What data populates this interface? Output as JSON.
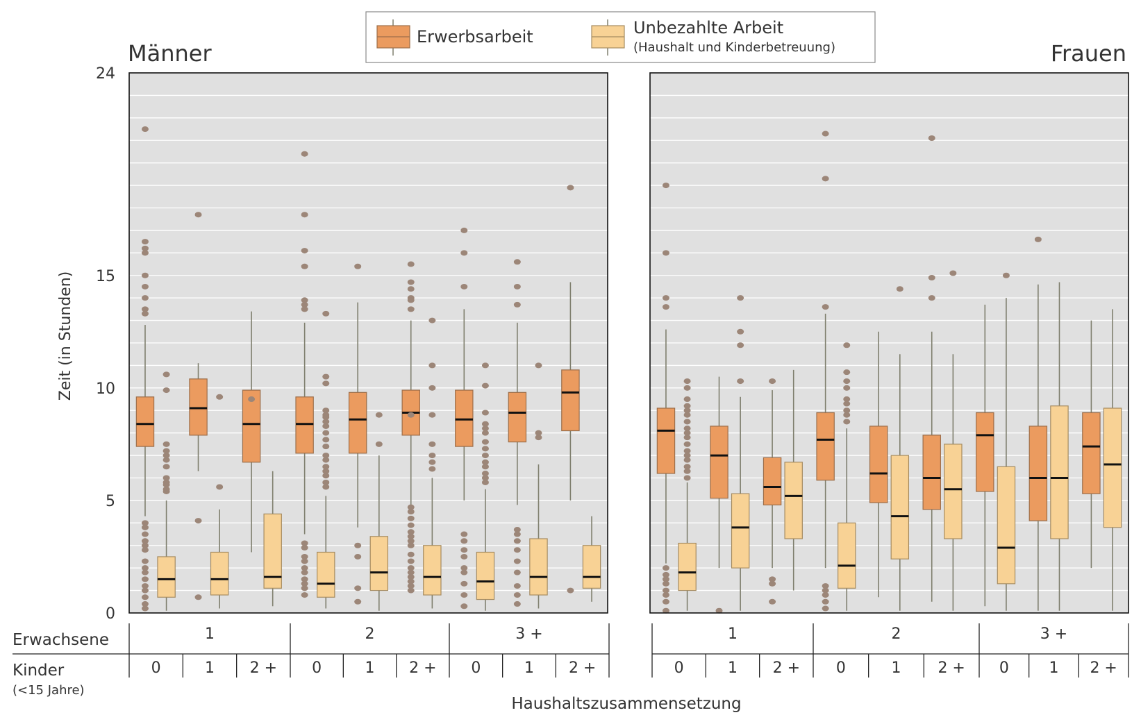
{
  "legend": {
    "erwerb": "Erwerbsarbeit",
    "unbezahlt": "Unbezahlte Arbeit",
    "unbezahlt_sub": "(Haushalt und Kinderbetreuung)"
  },
  "axis": {
    "ylabel": "Zeit (in Stunden)",
    "xlabel": "Haushaltszusammensetzung",
    "row1_label": "Erwachsene",
    "row2_label": "Kinder",
    "row2_sub": "(<15 Jahre)",
    "y_ticks": [
      "0",
      "5",
      "10",
      "15",
      "24"
    ]
  },
  "chart_data": {
    "type": "boxplot",
    "ylim": [
      0,
      24
    ],
    "ylabel": "Zeit (in Stunden)",
    "xlabel": "Haushaltszusammensetzung",
    "grid": "horizontal",
    "legend_position": "top-center",
    "colors": {
      "erwerb": "#EB9B5F",
      "unbezahlt": "#F8D295",
      "outlier": "#9C8678",
      "median": "#111111",
      "whisker": "#7F7F6E",
      "panel_bg": "#E0E0E0"
    },
    "groups": [
      {
        "adults": "1",
        "kids": [
          "0",
          "1",
          "2 +"
        ]
      },
      {
        "adults": "2",
        "kids": [
          "0",
          "1",
          "2 +"
        ]
      },
      {
        "adults": "3 +",
        "kids": [
          "0",
          "1",
          "2 +"
        ]
      }
    ],
    "panels": [
      {
        "title": "Männer",
        "series": [
          {
            "name": "Erwerbsarbeit",
            "boxes": [
              {
                "lw": 4.3,
                "q1": 7.4,
                "med": 8.4,
                "q3": 9.6,
                "uw": 12.8,
                "out": [
                  21.5,
                  16.5,
                  16.2,
                  16.0,
                  15.0,
                  14.5,
                  14.0,
                  13.5,
                  13.3,
                  4.0,
                  3.8,
                  3.5,
                  3.2,
                  3.0,
                  2.8,
                  2.3,
                  2.0,
                  1.8,
                  1.5,
                  1.2,
                  1.0,
                  0.7,
                  0.4,
                  0.2
                ]
              },
              {
                "lw": 6.3,
                "q1": 7.9,
                "med": 9.1,
                "q3": 10.4,
                "uw": 11.1,
                "out": [
                  17.7,
                  4.1,
                  0.7
                ]
              },
              {
                "lw": 2.7,
                "q1": 6.7,
                "med": 8.4,
                "q3": 9.9,
                "uw": 13.4,
                "out": [
                  9.5
                ]
              },
              {
                "lw": 3.5,
                "q1": 7.1,
                "med": 8.4,
                "q3": 9.6,
                "uw": 12.9,
                "out": [
                  20.4,
                  17.7,
                  16.1,
                  15.4,
                  13.9,
                  13.7,
                  13.5,
                  3.1,
                  2.9,
                  2.5,
                  2.3,
                  2.0,
                  1.8,
                  1.5,
                  1.3,
                  1.1,
                  0.8
                ]
              },
              {
                "lw": 3.8,
                "q1": 7.1,
                "med": 8.6,
                "q3": 9.8,
                "uw": 13.8,
                "out": [
                  15.4,
                  3.0,
                  2.5,
                  1.1,
                  0.5
                ]
              },
              {
                "lw": 4.8,
                "q1": 7.9,
                "med": 8.9,
                "q3": 9.9,
                "uw": 13.0,
                "out": [
                  15.5,
                  14.7,
                  14.4,
                  14.0,
                  13.9,
                  13.5,
                  8.8,
                  4.7,
                  4.5,
                  4.2,
                  3.9,
                  3.6,
                  3.4,
                  3.2,
                  3.0,
                  2.6,
                  2.3,
                  2.0,
                  1.8,
                  1.6,
                  1.4,
                  1.2,
                  1.0
                ]
              },
              {
                "lw": 5.0,
                "q1": 7.4,
                "med": 8.6,
                "q3": 9.9,
                "uw": 13.5,
                "out": [
                  17.0,
                  16.0,
                  14.5,
                  3.5,
                  3.2,
                  2.8,
                  2.5,
                  2.0,
                  1.8,
                  1.3,
                  0.8,
                  0.3
                ]
              },
              {
                "lw": 4.8,
                "q1": 7.6,
                "med": 8.9,
                "q3": 9.8,
                "uw": 12.9,
                "out": [
                  15.6,
                  14.5,
                  13.7,
                  3.7,
                  3.5,
                  3.2,
                  2.8,
                  2.3,
                  1.8,
                  1.2,
                  0.8,
                  0.4
                ]
              },
              {
                "lw": 5.0,
                "q1": 8.1,
                "med": 9.8,
                "q3": 10.8,
                "uw": 14.7,
                "out": [
                  18.9,
                  1.0
                ]
              }
            ]
          },
          {
            "name": "Unbezahlte Arbeit",
            "boxes": [
              {
                "lw": 0.1,
                "q1": 0.7,
                "med": 1.5,
                "q3": 2.5,
                "uw": 5.0,
                "out": [
                  10.6,
                  9.9,
                  7.5,
                  7.2,
                  7.0,
                  6.8,
                  6.5,
                  6.0,
                  5.8,
                  5.7,
                  5.5,
                  5.4
                ]
              },
              {
                "lw": 0.2,
                "q1": 0.8,
                "med": 1.5,
                "q3": 2.7,
                "uw": 4.6,
                "out": [
                  9.6,
                  5.6
                ]
              },
              {
                "lw": 0.3,
                "q1": 1.1,
                "med": 1.6,
                "q3": 4.4,
                "uw": 6.3,
                "out": []
              },
              {
                "lw": 0.2,
                "q1": 0.7,
                "med": 1.3,
                "q3": 2.7,
                "uw": 5.2,
                "out": [
                  13.3,
                  10.5,
                  10.2,
                  9.0,
                  8.8,
                  8.7,
                  8.5,
                  8.3,
                  8.0,
                  7.7,
                  7.4,
                  7.0,
                  6.8,
                  6.5,
                  6.3,
                  6.1,
                  5.8,
                  5.6
                ]
              },
              {
                "lw": 0.1,
                "q1": 1.0,
                "med": 1.8,
                "q3": 3.4,
                "uw": 7.0,
                "out": [
                  8.8,
                  7.5
                ]
              },
              {
                "lw": 0.2,
                "q1": 0.8,
                "med": 1.6,
                "q3": 3.0,
                "uw": 6.0,
                "out": [
                  13.0,
                  11.0,
                  10.0,
                  8.8,
                  7.5,
                  7.0,
                  6.7,
                  6.4
                ]
              },
              {
                "lw": 0.1,
                "q1": 0.6,
                "med": 1.4,
                "q3": 2.7,
                "uw": 5.5,
                "out": [
                  11.0,
                  10.1,
                  8.9,
                  8.4,
                  8.2,
                  8.0,
                  7.6,
                  7.3,
                  7.0,
                  6.7,
                  6.5,
                  6.2,
                  6.0,
                  5.8
                ]
              },
              {
                "lw": 0.2,
                "q1": 0.8,
                "med": 1.6,
                "q3": 3.3,
                "uw": 6.6,
                "out": [
                  11.0,
                  8.0,
                  7.8
                ]
              },
              {
                "lw": 0.5,
                "q1": 1.1,
                "med": 1.6,
                "q3": 3.0,
                "uw": 4.3,
                "out": []
              }
            ]
          }
        ]
      },
      {
        "title": "Frauen",
        "series": [
          {
            "name": "Erwerbsarbeit",
            "boxes": [
              {
                "lw": 2.2,
                "q1": 6.2,
                "med": 8.1,
                "q3": 9.1,
                "uw": 12.6,
                "out": [
                  19.0,
                  16.0,
                  14.0,
                  13.6,
                  2.0,
                  1.7,
                  1.5,
                  1.3,
                  1.0,
                  0.8,
                  0.5,
                  0.1
                ]
              },
              {
                "lw": 2.0,
                "q1": 5.1,
                "med": 7.0,
                "q3": 8.3,
                "uw": 10.5,
                "out": [
                  0.1
                ]
              },
              {
                "lw": 2.0,
                "q1": 4.8,
                "med": 5.6,
                "q3": 6.9,
                "uw": 9.9,
                "out": [
                  10.3,
                  1.5,
                  1.3,
                  0.5
                ]
              },
              {
                "lw": 2.0,
                "q1": 5.9,
                "med": 7.7,
                "q3": 8.9,
                "uw": 13.3,
                "out": [
                  21.3,
                  19.3,
                  13.6,
                  1.2,
                  1.0,
                  0.8,
                  0.5,
                  0.2
                ]
              },
              {
                "lw": 0.7,
                "q1": 4.9,
                "med": 6.2,
                "q3": 8.3,
                "uw": 12.5,
                "out": []
              },
              {
                "lw": 0.5,
                "q1": 4.6,
                "med": 6.0,
                "q3": 7.9,
                "uw": 12.5,
                "out": [
                  21.1,
                  14.9,
                  14.0
                ]
              },
              {
                "lw": 0.3,
                "q1": 5.4,
                "med": 7.9,
                "q3": 8.9,
                "uw": 13.7,
                "out": []
              },
              {
                "lw": 0.1,
                "q1": 4.1,
                "med": 6.0,
                "q3": 8.3,
                "uw": 14.6,
                "out": [
                  16.6
                ]
              },
              {
                "lw": 2.0,
                "q1": 5.3,
                "med": 7.4,
                "q3": 8.9,
                "uw": 13.0,
                "out": []
              }
            ]
          },
          {
            "name": "Unbezahlte Arbeit",
            "boxes": [
              {
                "lw": 0.1,
                "q1": 1.0,
                "med": 1.8,
                "q3": 3.1,
                "uw": 5.8,
                "out": [
                  10.3,
                  10.0,
                  9.5,
                  9.2,
                  9.0,
                  8.8,
                  8.5,
                  8.2,
                  8.0,
                  7.8,
                  7.5,
                  7.2,
                  7.0,
                  6.8,
                  6.5,
                  6.3,
                  6.0
                ]
              },
              {
                "lw": 0.1,
                "q1": 2.0,
                "med": 3.8,
                "q3": 5.3,
                "uw": 9.6,
                "out": [
                  14.0,
                  12.5,
                  11.9,
                  10.3
                ]
              },
              {
                "lw": 1.0,
                "q1": 3.3,
                "med": 5.2,
                "q3": 6.7,
                "uw": 10.8,
                "out": []
              },
              {
                "lw": 0.1,
                "q1": 1.1,
                "med": 2.1,
                "q3": 4.0,
                "uw": 8.2,
                "out": [
                  11.9,
                  10.7,
                  10.3,
                  10.0,
                  9.5,
                  9.3,
                  9.0,
                  8.8,
                  8.5
                ]
              },
              {
                "lw": 0.1,
                "q1": 2.4,
                "med": 4.3,
                "q3": 7.0,
                "uw": 11.5,
                "out": [
                  14.4
                ]
              },
              {
                "lw": 0.1,
                "q1": 3.3,
                "med": 5.5,
                "q3": 7.5,
                "uw": 11.5,
                "out": [
                  15.1
                ]
              },
              {
                "lw": 0.1,
                "q1": 1.3,
                "med": 2.9,
                "q3": 6.5,
                "uw": 14.0,
                "out": [
                  15.0
                ]
              },
              {
                "lw": 0.1,
                "q1": 3.3,
                "med": 6.0,
                "q3": 9.2,
                "uw": 14.7,
                "out": []
              },
              {
                "lw": 0.1,
                "q1": 3.8,
                "med": 6.6,
                "q3": 9.1,
                "uw": 13.5,
                "out": []
              }
            ]
          }
        ]
      }
    ]
  }
}
